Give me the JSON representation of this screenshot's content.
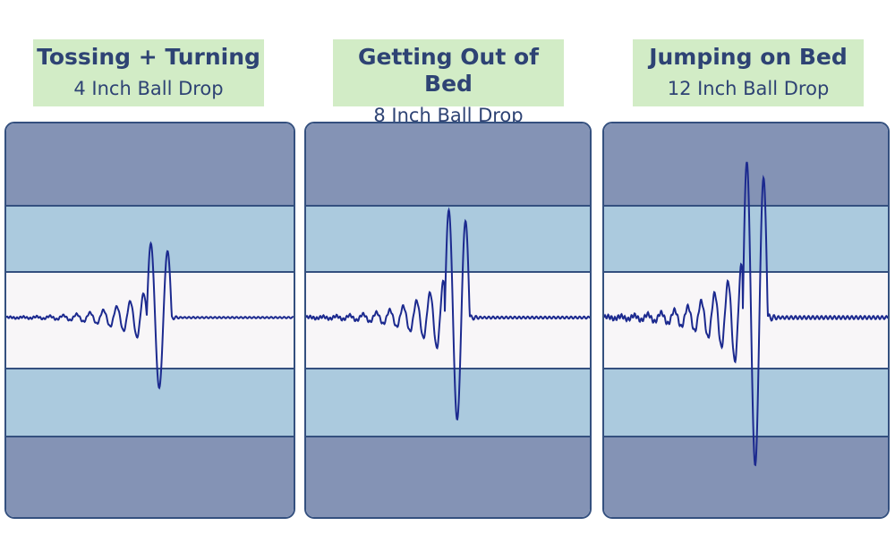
{
  "chart_data": [
    {
      "type": "line",
      "title": "Tossing + Turning",
      "subtitle": "4 Inch Ball Drop",
      "peak_amplitude": 1.0
    },
    {
      "type": "line",
      "title": "Getting Out of Bed",
      "subtitle": "8 Inch Ball Drop",
      "peak_amplitude": 1.45
    },
    {
      "type": "line",
      "title": "Jumping on Bed",
      "subtitle": "12 Inch Ball Drop",
      "peak_amplitude": 2.1
    }
  ],
  "colors": {
    "label_bg": "#d2ecc6",
    "label_text": "#2e4374",
    "band_dark": "#8493b5",
    "band_mid": "#abcade",
    "band_light": "#f8f6f8",
    "border": "#34507f",
    "waveform": "#1c2a8f"
  }
}
